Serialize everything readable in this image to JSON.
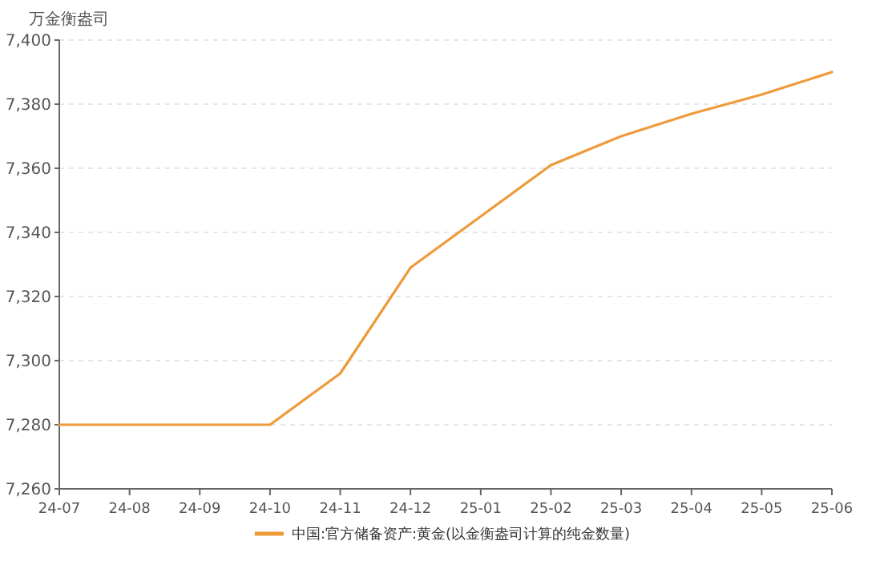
{
  "chart_data": {
    "type": "line",
    "ylabel": "万金衡盎司",
    "categories": [
      "24-07",
      "24-08",
      "24-09",
      "24-10",
      "24-11",
      "24-12",
      "25-01",
      "25-02",
      "25-03",
      "25-04",
      "25-05",
      "25-06"
    ],
    "series": [
      {
        "name": "中国:官方储备资产:黄金(以金衡盎司计算的纯金数量)",
        "color": "#ee9a3a",
        "values": [
          7280,
          7280,
          7280,
          7280,
          7296,
          7329,
          7345,
          7361,
          7370,
          7377,
          7383,
          7390
        ]
      }
    ],
    "ylim": [
      7260,
      7400
    ],
    "yticks": [
      {
        "value": 7260,
        "label": "7,260"
      },
      {
        "value": 7280,
        "label": "7,280"
      },
      {
        "value": 7300,
        "label": "7,300"
      },
      {
        "value": 7320,
        "label": "7,320"
      },
      {
        "value": 7340,
        "label": "7,340"
      },
      {
        "value": 7360,
        "label": "7,360"
      },
      {
        "value": 7380,
        "label": "7,380"
      },
      {
        "value": 7400,
        "label": "7,400"
      }
    ],
    "grid": "y",
    "legend": "bottom",
    "marker": "none",
    "line_style": "solid"
  }
}
